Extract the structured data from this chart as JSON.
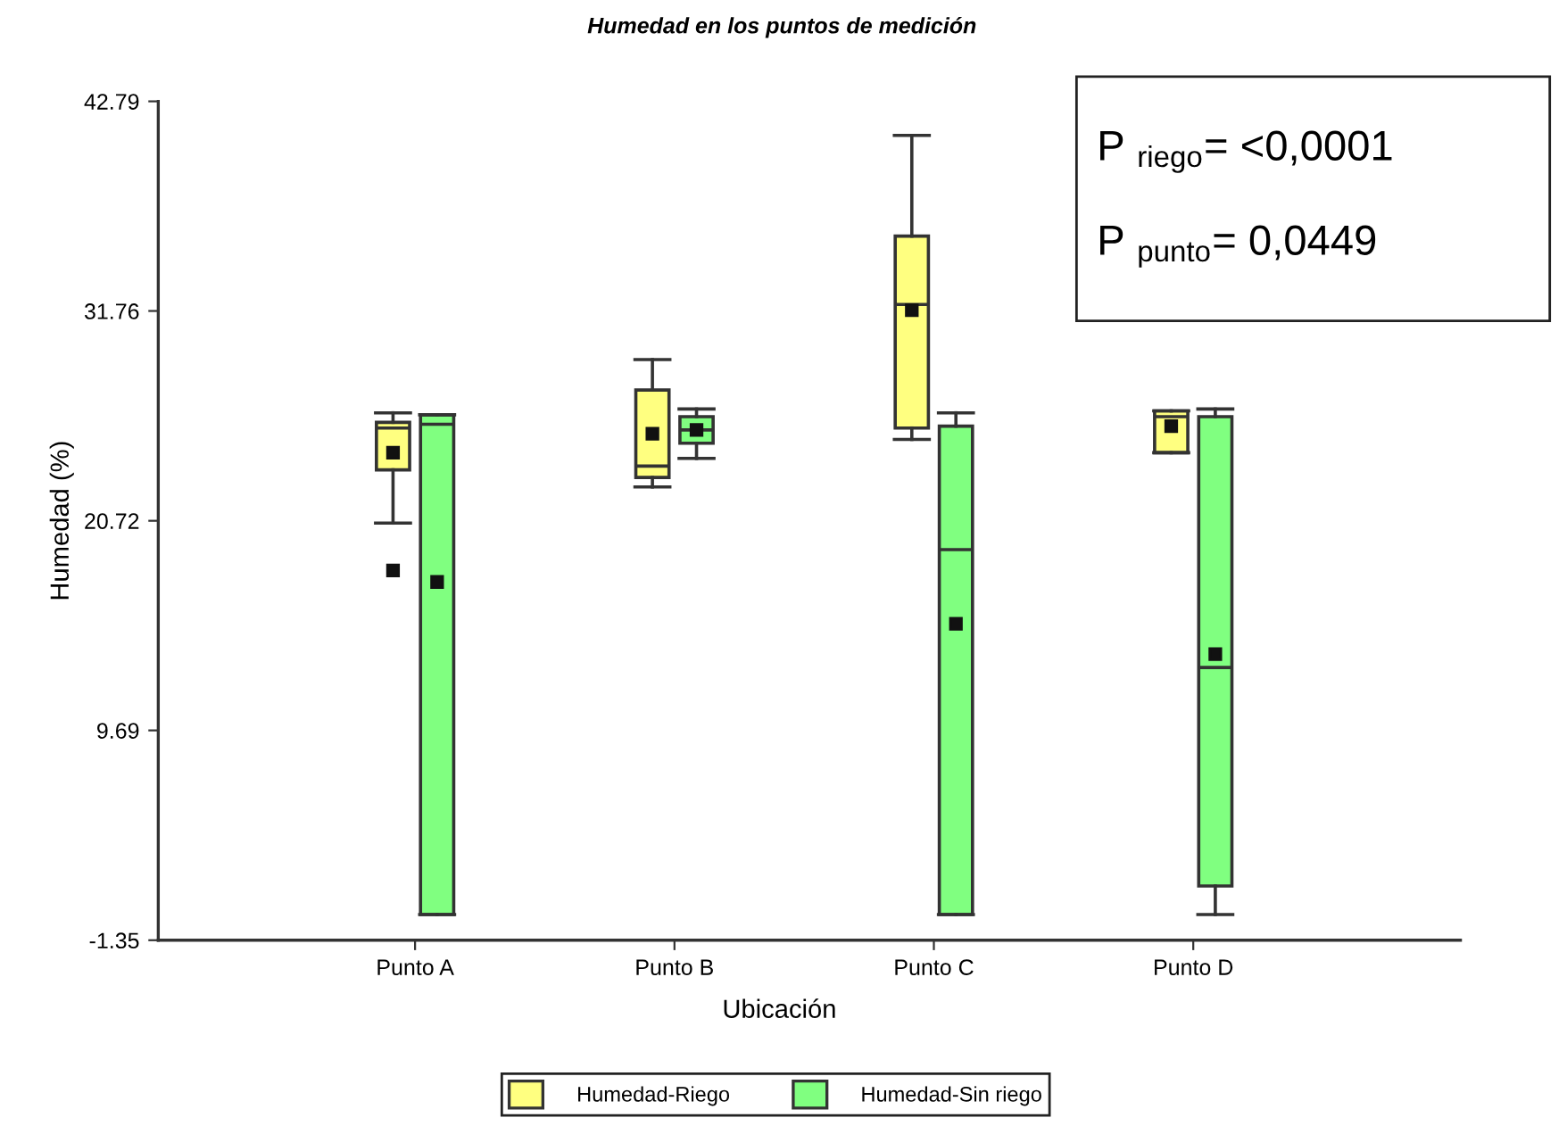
{
  "chart_data": {
    "type": "box",
    "title": "Humedad en los puntos de medición",
    "xlabel": "Ubicación",
    "ylabel": "Humedad (%)",
    "categories": [
      "Punto A",
      "Punto B",
      "Punto C",
      "Punto D"
    ],
    "series": [
      {
        "name": "Humedad-Riego",
        "color": "#ffff80",
        "boxes": [
          {
            "low": 20.6,
            "q1": 23.4,
            "median": 25.6,
            "q3": 25.9,
            "high": 26.4,
            "mean": 24.3,
            "outliers": [
              18.1
            ]
          },
          {
            "low": 22.5,
            "q1": 23.0,
            "median": 23.6,
            "q3": 27.6,
            "high": 29.2,
            "mean": 25.3
          },
          {
            "low": 25.0,
            "q1": 25.6,
            "median": 32.1,
            "q3": 35.7,
            "high": 41.0,
            "mean": 31.8
          },
          {
            "low": 24.3,
            "q1": 24.3,
            "median": 26.2,
            "q3": 26.5,
            "high": 26.5,
            "mean": 25.7
          }
        ]
      },
      {
        "name": "Humedad-Sin riego",
        "color": "#80ff80",
        "boxes": [
          {
            "low": 0.0,
            "q1": 0.0,
            "median": 25.8,
            "q3": 26.3,
            "high": 26.3,
            "mean": 17.5
          },
          {
            "low": 24.0,
            "q1": 24.8,
            "median": 25.5,
            "q3": 26.2,
            "high": 26.6,
            "mean": 25.5
          },
          {
            "low": 0.0,
            "q1": 0.0,
            "median": 19.2,
            "q3": 25.7,
            "high": 26.4,
            "mean": 15.3
          },
          {
            "low": 0.0,
            "q1": 1.5,
            "median": 13.0,
            "q3": 26.2,
            "high": 26.6,
            "mean": 13.7
          }
        ]
      }
    ],
    "ylim": [
      -1.35,
      42.79
    ],
    "yticks": [
      -1.35,
      9.69,
      20.72,
      31.76,
      42.79
    ],
    "marker": "square",
    "legend": "bottom",
    "annotations": [
      "P $_{riego}$= <0,0001",
      "P $_{punto}$= 0,0449"
    ]
  }
}
